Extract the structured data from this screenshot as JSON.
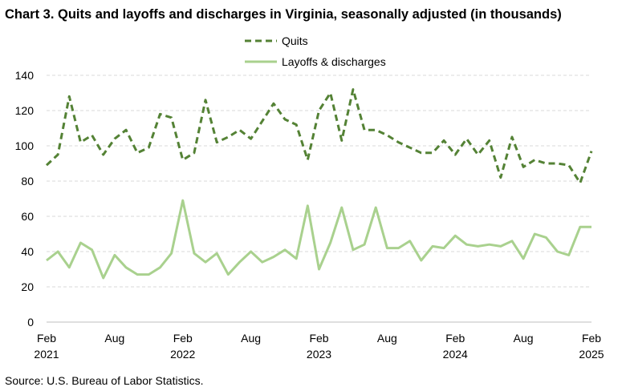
{
  "chart_data": {
    "type": "line",
    "title": "Chart 3. Quits and layoffs and discharges in Virginia, seasonally adjusted (in thousands)",
    "source": "Source: U.S. Bureau of Labor Statistics.",
    "xlabel": "",
    "ylabel": "",
    "ylim": [
      0,
      140
    ],
    "yticks": [
      0,
      20,
      40,
      60,
      80,
      100,
      120,
      140
    ],
    "grid": true,
    "legend_position": "top-center",
    "x_start": "Feb 2021",
    "x_end": "Feb 2025",
    "x_ticks": [
      {
        "index": 0,
        "month": "Feb",
        "year": "2021"
      },
      {
        "index": 6,
        "month": "Aug",
        "year": ""
      },
      {
        "index": 12,
        "month": "Feb",
        "year": "2022"
      },
      {
        "index": 18,
        "month": "Aug",
        "year": ""
      },
      {
        "index": 24,
        "month": "Feb",
        "year": "2023"
      },
      {
        "index": 30,
        "month": "Aug",
        "year": ""
      },
      {
        "index": 36,
        "month": "Feb",
        "year": "2024"
      },
      {
        "index": 42,
        "month": "Aug",
        "year": ""
      },
      {
        "index": 48,
        "month": "Feb",
        "year": "2025"
      }
    ],
    "series": [
      {
        "name": "Quits",
        "style": "dashed",
        "color": "#548235",
        "values": [
          89,
          95,
          128,
          102,
          106,
          95,
          104,
          109,
          96,
          99,
          118,
          116,
          92,
          96,
          126,
          102,
          105,
          109,
          104,
          114,
          124,
          115,
          112,
          92,
          120,
          130,
          103,
          132,
          109,
          109,
          106,
          102,
          99,
          96,
          96,
          103,
          95,
          104,
          95,
          103,
          82,
          105,
          88,
          92,
          90,
          90,
          89,
          79,
          97
        ]
      },
      {
        "name": "Layoffs & discharges",
        "style": "solid",
        "color": "#a9d18e",
        "values": [
          35,
          40,
          31,
          45,
          41,
          25,
          38,
          31,
          27,
          27,
          31,
          39,
          69,
          39,
          34,
          39,
          27,
          34,
          40,
          34,
          37,
          41,
          36,
          66,
          30,
          45,
          65,
          41,
          44,
          65,
          42,
          42,
          46,
          35,
          43,
          42,
          49,
          44,
          43,
          44,
          43,
          46,
          36,
          50,
          48,
          40,
          38,
          54,
          54
        ]
      }
    ]
  }
}
